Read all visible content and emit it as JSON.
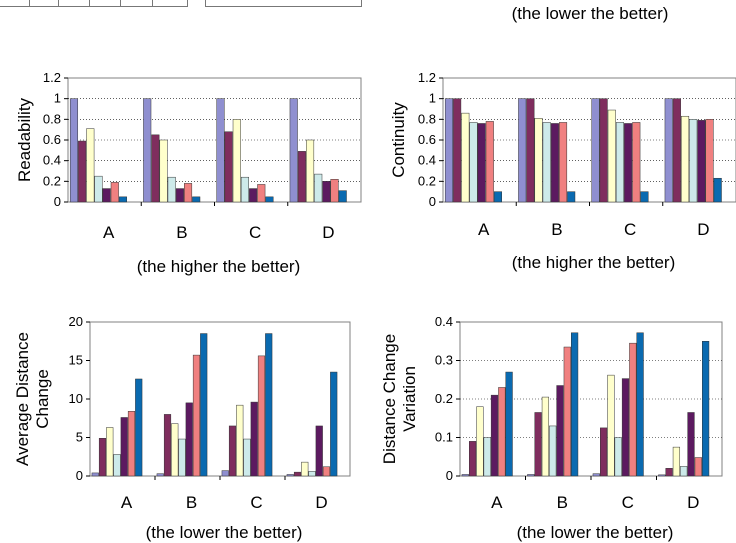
{
  "top_caption": "(the lower the better)",
  "series_colors": [
    "#8f8fd0",
    "#7f2d5e",
    "#ffffcc",
    "#cdeaea",
    "#5c1a60",
    "#f08080",
    "#0a6ab0"
  ],
  "chart_data": [
    {
      "type": "bar",
      "ylabel": "Readability",
      "caption": "(the higher the better)",
      "categories": [
        "A",
        "B",
        "C",
        "D"
      ],
      "ylim": [
        0,
        1.2
      ],
      "yticks": [
        "0",
        "0.2",
        "0.4",
        "0.6",
        "0.8",
        "1",
        "1.2"
      ],
      "grid": true,
      "series": [
        {
          "values": [
            1.0,
            1.0,
            1.0,
            1.0
          ]
        },
        {
          "values": [
            0.59,
            0.65,
            0.68,
            0.49
          ]
        },
        {
          "values": [
            0.71,
            0.6,
            0.8,
            0.6
          ]
        },
        {
          "values": [
            0.25,
            0.24,
            0.24,
            0.27
          ]
        },
        {
          "values": [
            0.13,
            0.13,
            0.13,
            0.2
          ]
        },
        {
          "values": [
            0.19,
            0.18,
            0.17,
            0.22
          ]
        },
        {
          "values": [
            0.05,
            0.05,
            0.05,
            0.11
          ]
        }
      ]
    },
    {
      "type": "bar",
      "ylabel": "Continuity",
      "caption": "(the higher the better)",
      "categories": [
        "A",
        "B",
        "C",
        "D"
      ],
      "ylim": [
        0,
        1.2
      ],
      "yticks": [
        "0",
        "0.2",
        "0.4",
        "0.6",
        "0.8",
        "1",
        "1.2"
      ],
      "grid": true,
      "series": [
        {
          "values": [
            1.0,
            1.0,
            1.0,
            1.0
          ]
        },
        {
          "values": [
            1.0,
            1.0,
            1.0,
            1.0
          ]
        },
        {
          "values": [
            0.86,
            0.81,
            0.89,
            0.83
          ]
        },
        {
          "values": [
            0.77,
            0.77,
            0.77,
            0.8
          ]
        },
        {
          "values": [
            0.76,
            0.76,
            0.76,
            0.79
          ]
        },
        {
          "values": [
            0.78,
            0.77,
            0.77,
            0.8
          ]
        },
        {
          "values": [
            0.1,
            0.1,
            0.1,
            0.23
          ]
        }
      ]
    },
    {
      "type": "bar",
      "ylabel": "Average Distance Change",
      "ylabel_lines": [
        "Average Distance",
        "Change"
      ],
      "caption": "(the lower the better)",
      "categories": [
        "A",
        "B",
        "C",
        "D"
      ],
      "ylim": [
        0,
        20
      ],
      "yticks": [
        "0",
        "5",
        "10",
        "15",
        "20"
      ],
      "grid": false,
      "series": [
        {
          "values": [
            0.4,
            0.3,
            0.7,
            0.2
          ]
        },
        {
          "values": [
            4.9,
            8.0,
            6.5,
            0.5
          ]
        },
        {
          "values": [
            6.3,
            6.8,
            9.2,
            1.8
          ]
        },
        {
          "values": [
            2.8,
            4.8,
            4.8,
            0.6
          ]
        },
        {
          "values": [
            7.6,
            9.5,
            9.6,
            6.5
          ]
        },
        {
          "values": [
            8.4,
            15.7,
            15.6,
            1.2
          ]
        },
        {
          "values": [
            12.6,
            18.5,
            18.5,
            13.5
          ]
        }
      ]
    },
    {
      "type": "bar",
      "ylabel": "Distance Change Variation",
      "ylabel_lines": [
        "Distance Change",
        "Variation"
      ],
      "caption": "(the lower the better)",
      "categories": [
        "A",
        "B",
        "C",
        "D"
      ],
      "ylim": [
        0,
        0.4
      ],
      "yticks": [
        "0",
        "0.1",
        "0.2",
        "0.3",
        "0.4"
      ],
      "grid": true,
      "series": [
        {
          "values": [
            0.004,
            0.004,
            0.006,
            0.003
          ]
        },
        {
          "values": [
            0.09,
            0.165,
            0.125,
            0.02
          ]
        },
        {
          "values": [
            0.18,
            0.205,
            0.262,
            0.075
          ]
        },
        {
          "values": [
            0.1,
            0.13,
            0.1,
            0.025
          ]
        },
        {
          "values": [
            0.21,
            0.235,
            0.253,
            0.165
          ]
        },
        {
          "values": [
            0.23,
            0.335,
            0.345,
            0.048
          ]
        },
        {
          "values": [
            0.27,
            0.372,
            0.372,
            0.35
          ]
        }
      ]
    }
  ]
}
